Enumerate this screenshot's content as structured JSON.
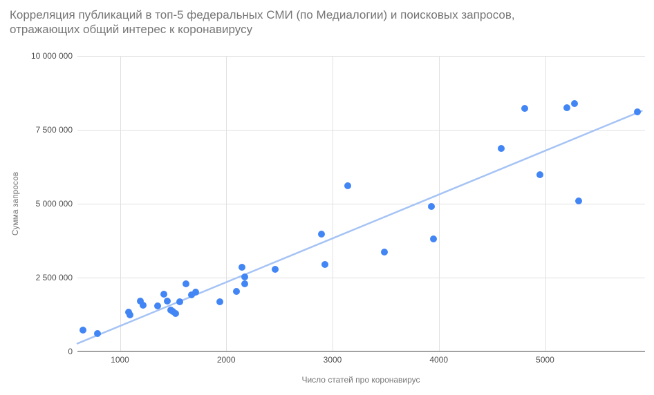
{
  "header": {
    "title_line1": "Корреляция публикаций в топ-5 федеральных СМИ (по Медиалогии) и поисковых запросов,",
    "title_line2": "отражающих общий интерес к коронавирусу"
  },
  "colors": {
    "point": "#4285f4",
    "trendline": "#a5c3f5",
    "grid": "#e0e0e0",
    "axis": "#424242",
    "title_text": "#757575",
    "tick_text": "#4d4d4d"
  },
  "chart_data": {
    "type": "scatter",
    "title": "Корреляция публикаций в топ-5 федеральных СМИ (по Медиалогии) и поисковых запросов, отражающих общий интерес к коронавирусу",
    "xlabel": "Число статей про коронавирус",
    "ylabel": "Сумма запросов",
    "xlim": [
      600,
      5940
    ],
    "ylim": [
      0,
      10000000
    ],
    "grid": true,
    "legend_position": "none",
    "x_ticks": [
      1000,
      2000,
      3000,
      4000,
      5000
    ],
    "x_tick_labels": [
      "1000",
      "2000",
      "3000",
      "4000",
      "5000"
    ],
    "y_ticks": [
      0,
      2500000,
      5000000,
      7500000,
      10000000
    ],
    "y_tick_labels": [
      "0",
      "2 500 000",
      "5 000 000",
      "7 500 000",
      "10 000 000"
    ],
    "series": [
      {
        "name": "Сумма запросов",
        "points": [
          [
            650,
            720000
          ],
          [
            790,
            600000
          ],
          [
            1080,
            1330000
          ],
          [
            1095,
            1250000
          ],
          [
            1190,
            1710000
          ],
          [
            1220,
            1570000
          ],
          [
            1355,
            1540000
          ],
          [
            1415,
            1950000
          ],
          [
            1445,
            1715000
          ],
          [
            1480,
            1400000
          ],
          [
            1500,
            1360000
          ],
          [
            1525,
            1280000
          ],
          [
            1560,
            1690000
          ],
          [
            1620,
            2290000
          ],
          [
            1675,
            1920000
          ],
          [
            1710,
            2000000
          ],
          [
            1940,
            1680000
          ],
          [
            2095,
            2030000
          ],
          [
            2145,
            2840000
          ],
          [
            2175,
            2530000
          ],
          [
            2175,
            2290000
          ],
          [
            2460,
            2780000
          ],
          [
            2895,
            3980000
          ],
          [
            2925,
            2940000
          ],
          [
            3140,
            5610000
          ],
          [
            3490,
            3370000
          ],
          [
            3930,
            4900000
          ],
          [
            3950,
            3810000
          ],
          [
            4590,
            6880000
          ],
          [
            4805,
            8220000
          ],
          [
            4950,
            5990000
          ],
          [
            5205,
            8240000
          ],
          [
            5275,
            8380000
          ],
          [
            5315,
            5100000
          ],
          [
            5870,
            8110000
          ]
        ]
      }
    ],
    "trendline": {
      "x1": 600,
      "y1": 270000,
      "x2": 5910,
      "y2": 8140000
    }
  }
}
